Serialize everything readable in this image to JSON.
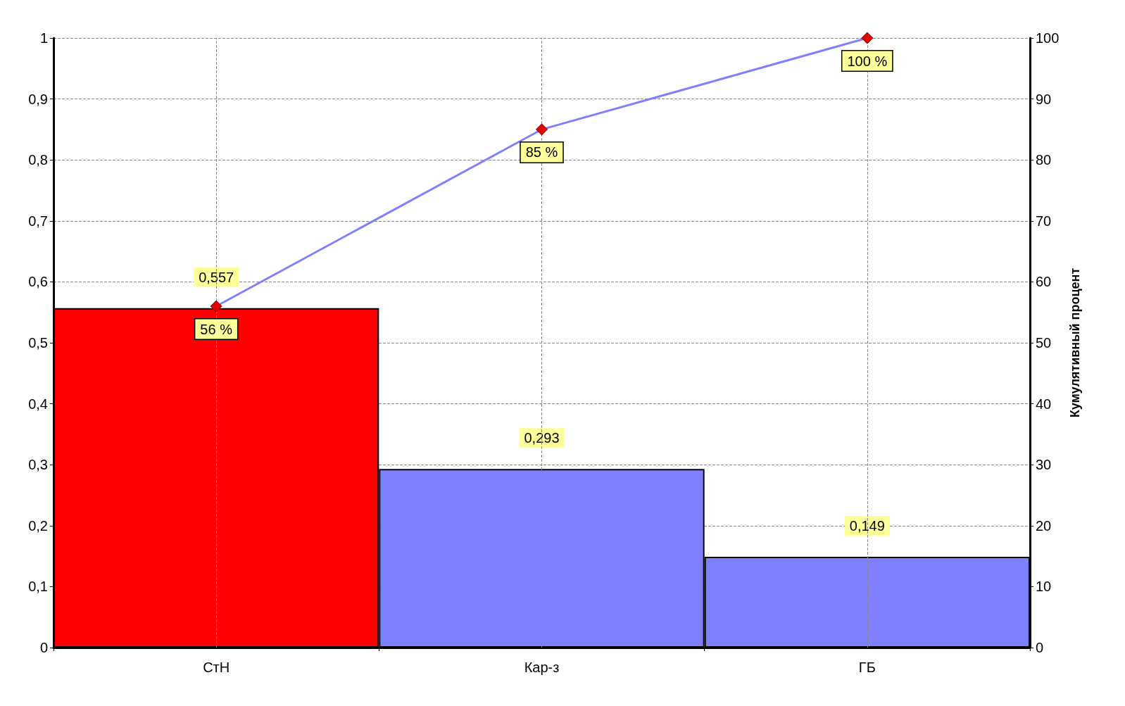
{
  "chart_data": {
    "type": "bar",
    "y2label": "Кумулятивный процент",
    "categories": [
      "СтН",
      "Кар-з",
      "ГБ"
    ],
    "series": [
      {
        "values": [
          0.557,
          0.293,
          0.149
        ],
        "colors": [
          "#ff0000",
          "#8080ff",
          "#8080ff"
        ],
        "value_labels": [
          "0,557",
          "0,293",
          "0,149"
        ]
      },
      {
        "type": "line",
        "axis": "y2",
        "color": "#8080ff",
        "colors": [
          "#e00000",
          "#e00000",
          "#e00000"
        ],
        "values": [
          56,
          85,
          100
        ],
        "value_labels": [
          "56 %",
          "85 %",
          "100 %"
        ],
        "marker": "diamond"
      }
    ],
    "ylim": [
      0,
      1
    ],
    "yticks": [
      0,
      {
        "value": 0.1,
        "label": "0,1"
      },
      {
        "value": 0.2,
        "label": "0,2"
      },
      {
        "value": 0.3,
        "label": "0,3"
      },
      {
        "value": 0.4,
        "label": "0,4"
      },
      {
        "value": 0.5,
        "label": "0,5"
      },
      {
        "value": 0.6,
        "label": "0,6"
      },
      {
        "value": 0.7,
        "label": "0,7"
      },
      {
        "value": 0.8,
        "label": "0,8"
      },
      {
        "value": 0.9,
        "label": "0,9"
      },
      1
    ],
    "y2lim": [
      0,
      100
    ],
    "y2ticks": [
      0,
      10,
      20,
      30,
      40,
      50,
      60,
      70,
      80,
      90,
      100
    ],
    "grid": true
  }
}
